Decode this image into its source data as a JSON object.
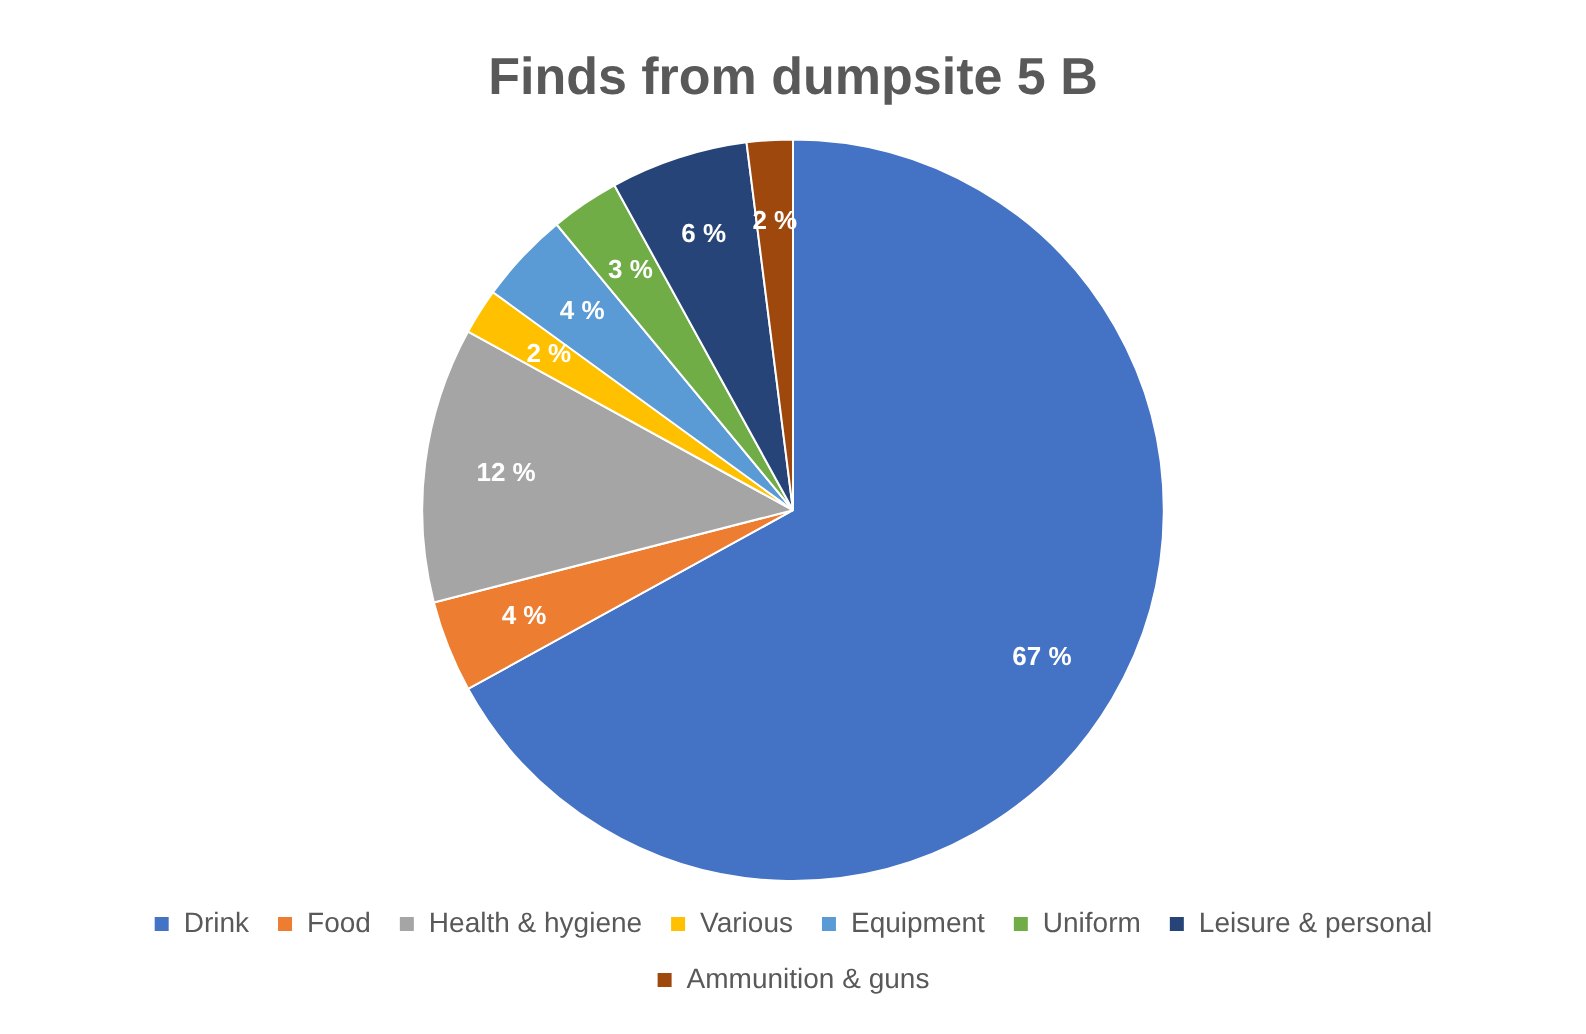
{
  "chart_data": {
    "type": "pie",
    "title": "Finds from dumpsite 5 B",
    "categories": [
      "Drink",
      "Food",
      "Health & hygiene",
      "Various",
      "Equipment",
      "Uniform",
      "Leisure & personal",
      "Ammunition & guns"
    ],
    "values": [
      67,
      4,
      12,
      2,
      4,
      3,
      6,
      2
    ],
    "colors": [
      "#4472c4",
      "#ed7d31",
      "#a5a5a5",
      "#ffc000",
      "#5b9bd5",
      "#70ad47",
      "#264478",
      "#9e480e"
    ],
    "value_labels": [
      "67 %",
      "4 %",
      "12 %",
      "2 %",
      "4 %",
      "3 %",
      "6 %",
      "2 %"
    ],
    "legend": "bottom"
  }
}
